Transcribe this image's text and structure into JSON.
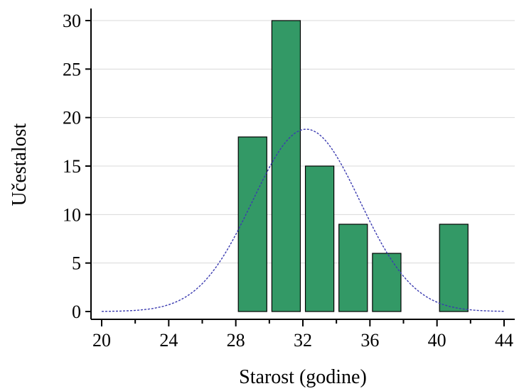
{
  "chart_data": {
    "type": "bar",
    "x": [
      29,
      31,
      33,
      35,
      37,
      41
    ],
    "bin_width": 1.7,
    "values": [
      18,
      30,
      15,
      9,
      6,
      9
    ],
    "xlabel": "Starost (godine)",
    "ylabel": "Učestalost",
    "xlim": [
      19.5,
      44.5
    ],
    "ylim": [
      0,
      31
    ],
    "xticks": [
      20,
      24,
      28,
      32,
      36,
      40,
      44
    ],
    "yticks": [
      0,
      5,
      10,
      15,
      20,
      25,
      30
    ],
    "normal_curve": {
      "mean": 32.2,
      "sd": 3.2
    },
    "bar_color": "#339966",
    "curve_color": "#3b3bb0",
    "grid": "horizontal"
  }
}
